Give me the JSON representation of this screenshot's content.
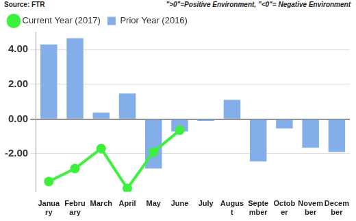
{
  "chart_data": {
    "type": "bar",
    "annotations": [
      "Source: FTR",
      "\">0\"=Positive Environment, \"<0\"= Negative Environment"
    ],
    "categories": [
      "January",
      "February",
      "March",
      "April",
      "May",
      "June",
      "July",
      "August",
      "September",
      "October",
      "November",
      "December"
    ],
    "series": [
      {
        "name": "Prior Year (2016)",
        "type": "bar",
        "color": "#83aee9",
        "marker": "square",
        "values": [
          4.3,
          4.65,
          0.37,
          1.47,
          -2.85,
          -0.72,
          -0.1,
          1.1,
          -2.45,
          -0.55,
          -1.65,
          -1.9
        ]
      },
      {
        "name": "Current Year (2017)",
        "type": "line",
        "color": "#3ef03e",
        "marker": "circle",
        "line_style": "solid",
        "values": [
          -3.6,
          -2.85,
          -1.7,
          -4.0,
          -1.9,
          -0.65,
          null,
          null,
          null,
          null,
          null,
          null
        ]
      }
    ],
    "ylim": [
      -4.2,
      5
    ],
    "yticks": [
      {
        "value": -2,
        "label": "-2.00"
      },
      {
        "value": 0,
        "label": "0.00"
      },
      {
        "value": 2,
        "label": "2.00"
      },
      {
        "value": 4,
        "label": "4.00"
      }
    ],
    "grid": true,
    "legend": "top-left"
  }
}
